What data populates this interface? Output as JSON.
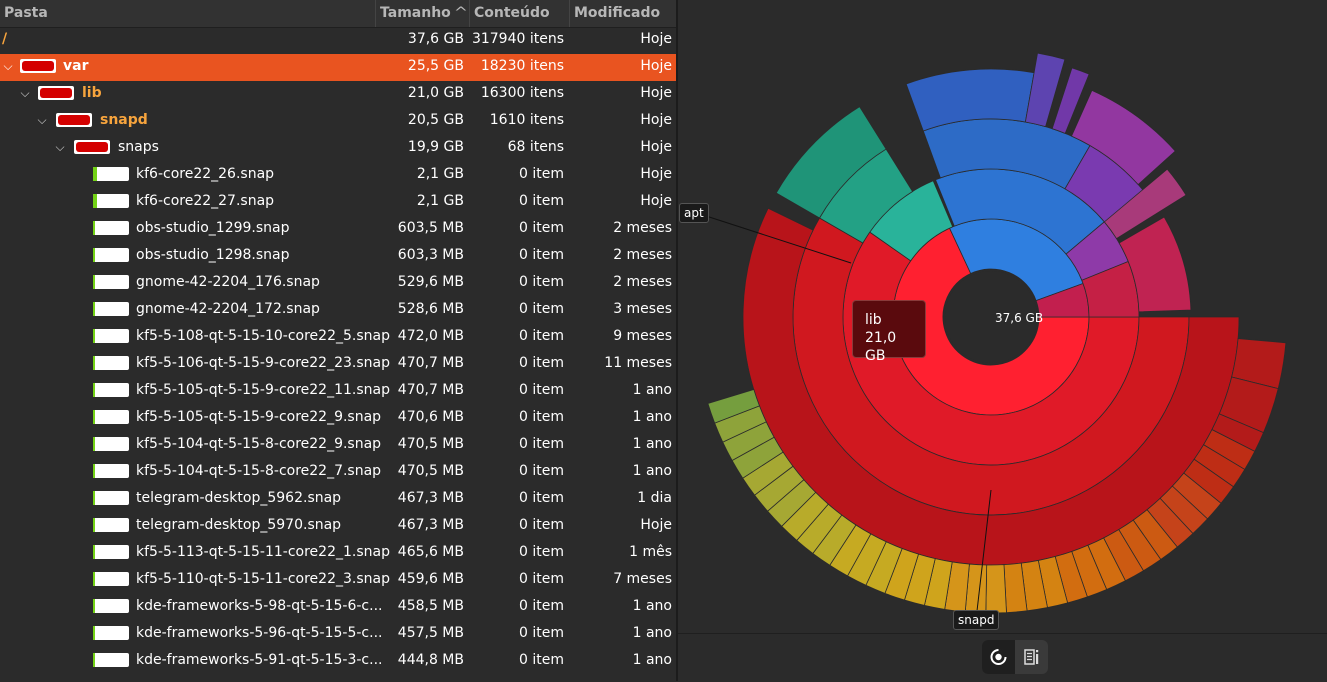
{
  "header": {
    "col_name": "Pasta",
    "col_size": "Tamanho",
    "col_count": "Conteúdo",
    "col_modified": "Modificado",
    "sort_arrow": "^"
  },
  "rows": [
    {
      "name": "/",
      "size": "37,6 GB",
      "count": "317940 itens",
      "modified": "Hoje"
    },
    {
      "name": "var",
      "size": "25,5 GB",
      "count": "18230 itens",
      "modified": "Hoje"
    },
    {
      "name": "lib",
      "size": "21,0 GB",
      "count": "16300 itens",
      "modified": "Hoje"
    },
    {
      "name": "snapd",
      "size": "20,5 GB",
      "count": "1610 itens",
      "modified": "Hoje"
    },
    {
      "name": "snaps",
      "size": "19,9 GB",
      "count": "68 itens",
      "modified": "Hoje"
    },
    {
      "name": "kf6-core22_26.snap",
      "size": "2,1 GB",
      "count": "0 item",
      "modified": "Hoje"
    },
    {
      "name": "kf6-core22_27.snap",
      "size": "2,1 GB",
      "count": "0 item",
      "modified": "Hoje"
    },
    {
      "name": "obs-studio_1299.snap",
      "size": "603,5 MB",
      "count": "0 item",
      "modified": "2 meses"
    },
    {
      "name": "obs-studio_1298.snap",
      "size": "603,3 MB",
      "count": "0 item",
      "modified": "2 meses"
    },
    {
      "name": "gnome-42-2204_176.snap",
      "size": "529,6 MB",
      "count": "0 item",
      "modified": "2 meses"
    },
    {
      "name": "gnome-42-2204_172.snap",
      "size": "528,6 MB",
      "count": "0 item",
      "modified": "3 meses"
    },
    {
      "name": "kf5-5-108-qt-5-15-10-core22_5.snap",
      "size": "472,0 MB",
      "count": "0 item",
      "modified": "9 meses"
    },
    {
      "name": "kf5-5-106-qt-5-15-9-core22_23.snap",
      "size": "470,7 MB",
      "count": "0 item",
      "modified": "11 meses"
    },
    {
      "name": "kf5-5-105-qt-5-15-9-core22_11.snap",
      "size": "470,7 MB",
      "count": "0 item",
      "modified": "1 ano"
    },
    {
      "name": "kf5-5-105-qt-5-15-9-core22_9.snap",
      "size": "470,6 MB",
      "count": "0 item",
      "modified": "1 ano"
    },
    {
      "name": "kf5-5-104-qt-5-15-8-core22_9.snap",
      "size": "470,5 MB",
      "count": "0 item",
      "modified": "1 ano"
    },
    {
      "name": "kf5-5-104-qt-5-15-8-core22_7.snap",
      "size": "470,5 MB",
      "count": "0 item",
      "modified": "1 ano"
    },
    {
      "name": "telegram-desktop_5962.snap",
      "size": "467,3 MB",
      "count": "0 item",
      "modified": "1 dia"
    },
    {
      "name": "telegram-desktop_5970.snap",
      "size": "467,3 MB",
      "count": "0 item",
      "modified": "Hoje"
    },
    {
      "name": "kf5-5-113-qt-5-15-11-core22_1.snap",
      "size": "465,6 MB",
      "count": "0 item",
      "modified": "1 mês"
    },
    {
      "name": "kf5-5-110-qt-5-15-11-core22_3.snap",
      "size": "459,6 MB",
      "count": "0 item",
      "modified": "7 meses"
    },
    {
      "name": "kde-frameworks-5-98-qt-5-15-6-c...",
      "size": "458,5 MB",
      "count": "0 item",
      "modified": "1 ano"
    },
    {
      "name": "kde-frameworks-5-96-qt-5-15-5-c...",
      "size": "457,5 MB",
      "count": "0 item",
      "modified": "1 ano"
    },
    {
      "name": "kde-frameworks-5-91-qt-5-15-3-c...",
      "size": "444,8 MB",
      "count": "0 item",
      "modified": "1 ano"
    }
  ],
  "row_fill_fractions": [
    0,
    1,
    1,
    1,
    1,
    0.1,
    0.1,
    0.03,
    0.03,
    0.02,
    0.02,
    0.02,
    0.02,
    0.02,
    0.02,
    0.02,
    0.02,
    0.02,
    0.02,
    0.02,
    0.02,
    0.02,
    0.02,
    0.02
  ],
  "chart": {
    "center_label": "37,6 GB",
    "hover_tooltip_name": "lib",
    "hover_tooltip_size": "21,0 GB",
    "label_apt": "apt",
    "label_snapd": "snapd"
  },
  "view_buttons": {
    "chart_icon": "ring-chart-icon",
    "treemap_icon": "treemap-chart-icon"
  },
  "colors": {
    "selected_row": "#e95420",
    "dir_name": "#f7a43d",
    "bar_red": "#d40000",
    "bar_green": "#73d216"
  }
}
